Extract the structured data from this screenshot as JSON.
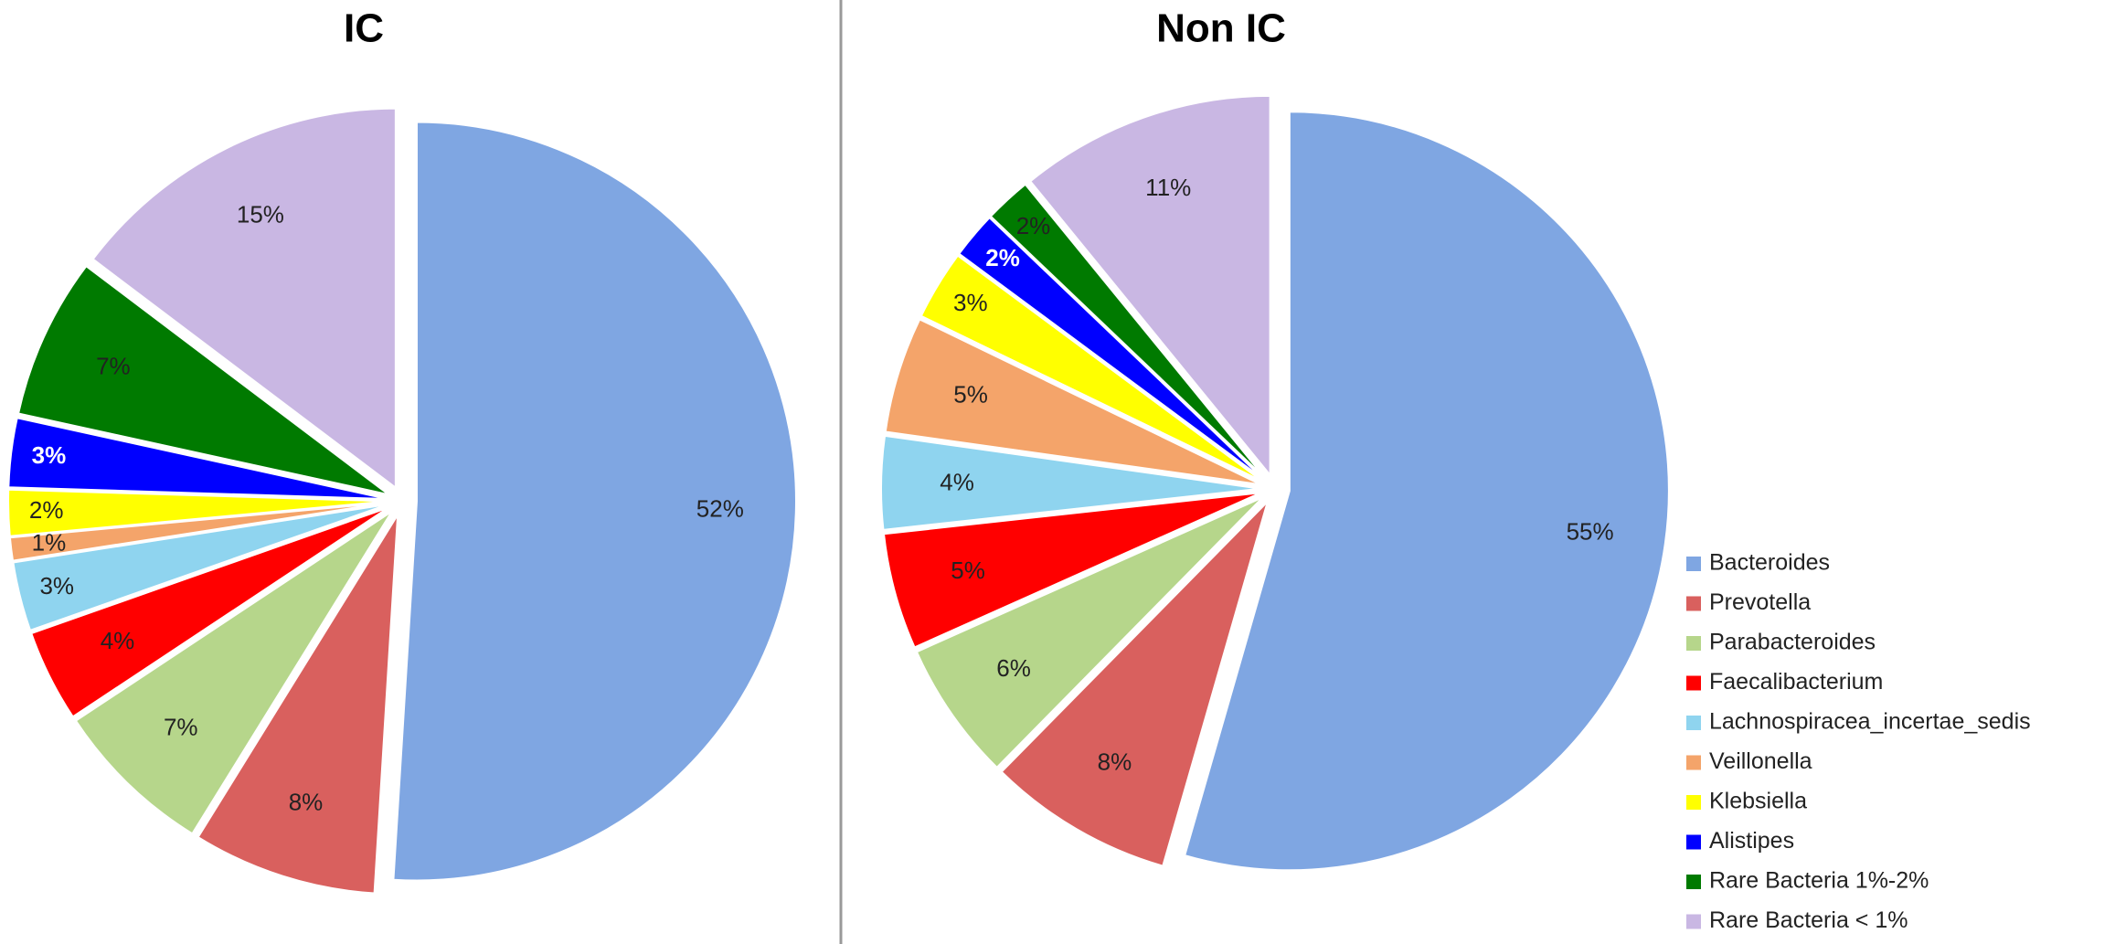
{
  "chart_data": [
    {
      "type": "pie",
      "title": "IC",
      "categories": [
        "Bacteroides",
        "Prevotella",
        "Parabacteroides",
        "Faecalibacterium",
        "Lachnospiracea_incertae_sedis",
        "Veillonella",
        "Klebsiella",
        "Alistipes",
        "Rare Bacteria 1%-2%",
        "Rare Bacteria < 1%"
      ],
      "values": [
        52,
        8,
        7,
        4,
        3,
        1,
        2,
        3,
        7,
        15
      ],
      "value_labels": [
        "52%",
        "8%",
        "7%",
        "4%",
        "3%",
        "1%",
        "2%",
        "3%",
        "7%",
        "15%"
      ],
      "colors": [
        "#7fa6e2",
        "#d9605e",
        "#b6d68b",
        "#ff0000",
        "#8fd4ef",
        "#f4a46a",
        "#ffff00",
        "#0000ff",
        "#007a00",
        "#c9b7e3"
      ]
    },
    {
      "type": "pie",
      "title": "Non IC",
      "categories": [
        "Bacteroides",
        "Prevotella",
        "Parabacteroides",
        "Faecalibacterium",
        "Lachnospiracea_incertae_sedis",
        "Veillonella",
        "Klebsiella",
        "Alistipes",
        "Rare Bacteria 1%-2%",
        "Rare Bacteria < 1%"
      ],
      "values": [
        55,
        8,
        6,
        5,
        4,
        5,
        3,
        2,
        2,
        11
      ],
      "value_labels": [
        "55%",
        "8%",
        "6%",
        "5%",
        "4%",
        "5%",
        "3%",
        "2%",
        "2%",
        "11%"
      ],
      "colors": [
        "#7fa6e2",
        "#d9605e",
        "#b6d68b",
        "#ff0000",
        "#8fd4ef",
        "#f4a46a",
        "#ffff00",
        "#0000ff",
        "#007a00",
        "#c9b7e3"
      ]
    }
  ]
}
